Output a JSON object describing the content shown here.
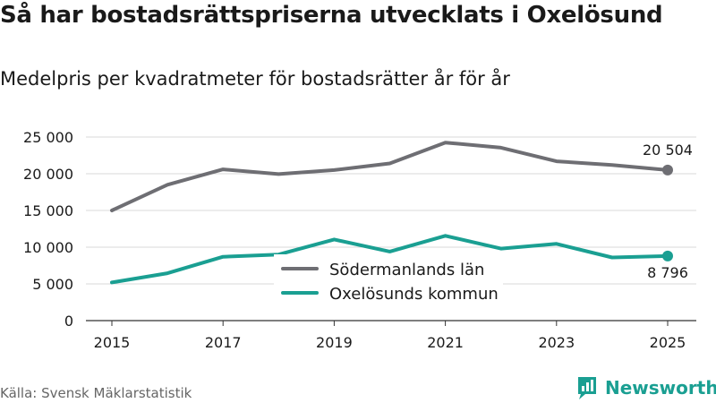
{
  "title": "Så har bostadsrättspriserna utvecklats i Oxelösund",
  "subtitle": "Medelpris per kvadratmeter för bostadsrätter år för år",
  "source": "Källa: Svensk Mäklarstatistik",
  "brand": {
    "name": "Newsworthy",
    "icon": "newsworthy-logo-icon",
    "color": "#1a9f92"
  },
  "chart_data": {
    "type": "line",
    "title": "Så har bostadsrättspriserna utvecklats i Oxelösund",
    "subtitle": "Medelpris per kvadratmeter för bostadsrätter år för år",
    "xlabel": "",
    "ylabel": "",
    "x": [
      2015,
      2016,
      2017,
      2018,
      2019,
      2020,
      2021,
      2022,
      2023,
      2024,
      2025
    ],
    "xlim": [
      2015,
      2025
    ],
    "xticks": [
      "2015",
      "2017",
      "2019",
      "2021",
      "2023",
      "2025"
    ],
    "ylim": [
      0,
      25000
    ],
    "yticks": [
      "0",
      "5 000",
      "10 000",
      "15 000",
      "20 000",
      "25 000"
    ],
    "grid": true,
    "legend_position": "center",
    "series": [
      {
        "name": "Södermanlands län",
        "color": "#6e6e73",
        "values": [
          15000,
          18500,
          20600,
          19950,
          20500,
          21400,
          24250,
          23550,
          21700,
          21200,
          20504
        ],
        "end_label": "20 504"
      },
      {
        "name": "Oxelösunds kommun",
        "color": "#1a9f92",
        "values": [
          5200,
          6450,
          8700,
          9000,
          11050,
          9400,
          11550,
          9800,
          10450,
          8600,
          8796
        ],
        "end_label": "8 796"
      }
    ]
  }
}
